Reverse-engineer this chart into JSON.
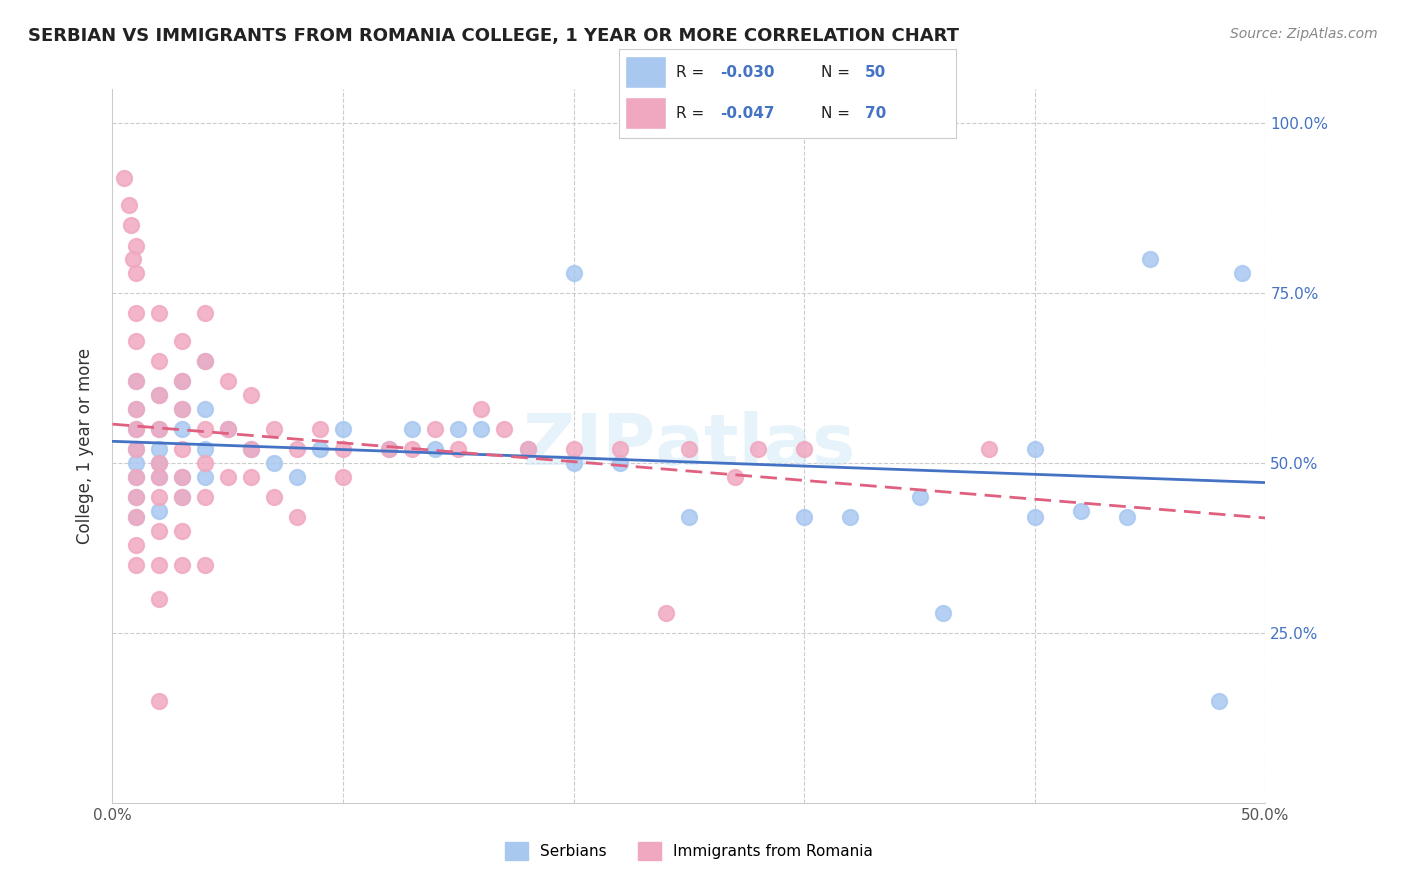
{
  "title": "SERBIAN VS IMMIGRANTS FROM ROMANIA COLLEGE, 1 YEAR OR MORE CORRELATION CHART",
  "source": "Source: ZipAtlas.com",
  "xlabel_ticks": [
    "0.0%",
    "50.0%"
  ],
  "ylabel_ticks": [
    "25.0%",
    "50.0%",
    "75.0%",
    "100.0%"
  ],
  "ylabel": "College, 1 year or more",
  "xlim": [
    0.0,
    0.5
  ],
  "ylim": [
    0.0,
    1.05
  ],
  "legend_serbian_R": "-0.030",
  "legend_serbian_N": "50",
  "legend_romania_R": "-0.047",
  "legend_romania_N": "70",
  "serbian_color": "#a8c8f0",
  "romania_color": "#f0a8c0",
  "serbian_line_color": "#4472c4",
  "romania_line_color": "#e06080",
  "watermark": "ZIPAtlas",
  "serbian_points": [
    [
      0.01,
      0.52
    ],
    [
      0.01,
      0.55
    ],
    [
      0.01,
      0.58
    ],
    [
      0.01,
      0.62
    ],
    [
      0.01,
      0.5
    ],
    [
      0.01,
      0.48
    ],
    [
      0.01,
      0.45
    ],
    [
      0.01,
      0.42
    ],
    [
      0.02,
      0.6
    ],
    [
      0.02,
      0.55
    ],
    [
      0.02,
      0.5
    ],
    [
      0.02,
      0.48
    ],
    [
      0.02,
      0.43
    ],
    [
      0.02,
      0.52
    ],
    [
      0.03,
      0.62
    ],
    [
      0.03,
      0.58
    ],
    [
      0.03,
      0.55
    ],
    [
      0.03,
      0.48
    ],
    [
      0.03,
      0.45
    ],
    [
      0.04,
      0.65
    ],
    [
      0.04,
      0.58
    ],
    [
      0.04,
      0.52
    ],
    [
      0.04,
      0.48
    ],
    [
      0.05,
      0.55
    ],
    [
      0.06,
      0.52
    ],
    [
      0.07,
      0.5
    ],
    [
      0.08,
      0.48
    ],
    [
      0.09,
      0.52
    ],
    [
      0.1,
      0.55
    ],
    [
      0.12,
      0.52
    ],
    [
      0.13,
      0.55
    ],
    [
      0.14,
      0.52
    ],
    [
      0.15,
      0.55
    ],
    [
      0.16,
      0.55
    ],
    [
      0.18,
      0.52
    ],
    [
      0.2,
      0.78
    ],
    [
      0.2,
      0.5
    ],
    [
      0.22,
      0.5
    ],
    [
      0.25,
      0.42
    ],
    [
      0.3,
      0.42
    ],
    [
      0.32,
      0.42
    ],
    [
      0.35,
      0.45
    ],
    [
      0.36,
      0.28
    ],
    [
      0.4,
      0.52
    ],
    [
      0.4,
      0.42
    ],
    [
      0.42,
      0.43
    ],
    [
      0.44,
      0.42
    ],
    [
      0.45,
      0.8
    ],
    [
      0.48,
      0.15
    ],
    [
      0.49,
      0.78
    ]
  ],
  "romania_points": [
    [
      0.005,
      0.92
    ],
    [
      0.007,
      0.88
    ],
    [
      0.008,
      0.85
    ],
    [
      0.009,
      0.8
    ],
    [
      0.01,
      0.82
    ],
    [
      0.01,
      0.78
    ],
    [
      0.01,
      0.72
    ],
    [
      0.01,
      0.68
    ],
    [
      0.01,
      0.62
    ],
    [
      0.01,
      0.58
    ],
    [
      0.01,
      0.55
    ],
    [
      0.01,
      0.52
    ],
    [
      0.01,
      0.48
    ],
    [
      0.01,
      0.45
    ],
    [
      0.01,
      0.42
    ],
    [
      0.01,
      0.38
    ],
    [
      0.01,
      0.35
    ],
    [
      0.02,
      0.72
    ],
    [
      0.02,
      0.65
    ],
    [
      0.02,
      0.6
    ],
    [
      0.02,
      0.55
    ],
    [
      0.02,
      0.5
    ],
    [
      0.02,
      0.48
    ],
    [
      0.02,
      0.45
    ],
    [
      0.02,
      0.4
    ],
    [
      0.02,
      0.35
    ],
    [
      0.02,
      0.3
    ],
    [
      0.02,
      0.15
    ],
    [
      0.03,
      0.68
    ],
    [
      0.03,
      0.62
    ],
    [
      0.03,
      0.58
    ],
    [
      0.03,
      0.52
    ],
    [
      0.03,
      0.48
    ],
    [
      0.03,
      0.45
    ],
    [
      0.03,
      0.4
    ],
    [
      0.03,
      0.35
    ],
    [
      0.04,
      0.72
    ],
    [
      0.04,
      0.65
    ],
    [
      0.04,
      0.55
    ],
    [
      0.04,
      0.5
    ],
    [
      0.04,
      0.45
    ],
    [
      0.04,
      0.35
    ],
    [
      0.05,
      0.62
    ],
    [
      0.05,
      0.55
    ],
    [
      0.05,
      0.48
    ],
    [
      0.06,
      0.6
    ],
    [
      0.06,
      0.52
    ],
    [
      0.06,
      0.48
    ],
    [
      0.07,
      0.55
    ],
    [
      0.07,
      0.45
    ],
    [
      0.08,
      0.52
    ],
    [
      0.08,
      0.42
    ],
    [
      0.09,
      0.55
    ],
    [
      0.1,
      0.52
    ],
    [
      0.1,
      0.48
    ],
    [
      0.12,
      0.52
    ],
    [
      0.13,
      0.52
    ],
    [
      0.14,
      0.55
    ],
    [
      0.15,
      0.52
    ],
    [
      0.16,
      0.58
    ],
    [
      0.17,
      0.55
    ],
    [
      0.18,
      0.52
    ],
    [
      0.2,
      0.52
    ],
    [
      0.22,
      0.52
    ],
    [
      0.24,
      0.28
    ],
    [
      0.25,
      0.52
    ],
    [
      0.27,
      0.48
    ],
    [
      0.28,
      0.52
    ],
    [
      0.3,
      0.52
    ],
    [
      0.38,
      0.52
    ]
  ]
}
